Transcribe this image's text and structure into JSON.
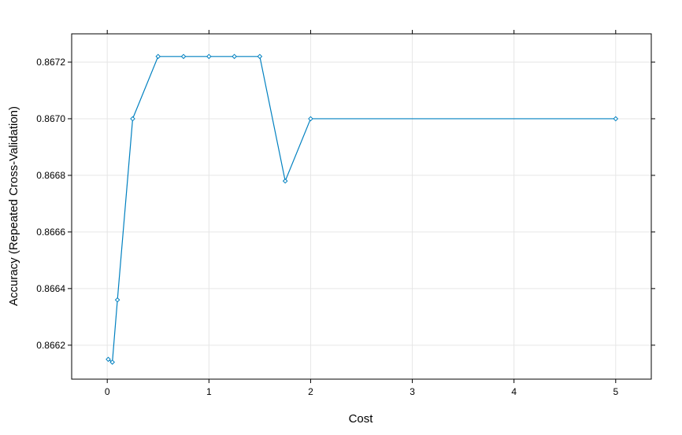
{
  "chart_data": {
    "type": "line",
    "title": "",
    "xlabel": "Cost",
    "ylabel": "Accuracy (Repeated Cross-Validation)",
    "xlim": [
      -0.35,
      5.35
    ],
    "ylim": [
      0.86608,
      0.8673
    ],
    "x_ticks": [
      0,
      1,
      2,
      3,
      4,
      5
    ],
    "x_tick_labels": [
      "0",
      "1",
      "2",
      "3",
      "4",
      "5"
    ],
    "y_ticks": [
      0.8662,
      0.8664,
      0.8666,
      0.8668,
      0.867,
      0.8672
    ],
    "y_tick_labels": [
      "0.8662",
      "0.8664",
      "0.8666",
      "0.8668",
      "0.8670",
      "0.8672"
    ],
    "grid": true,
    "series": [
      {
        "color": "#0080c0",
        "marker": "diamond",
        "x": [
          0.01,
          0.05,
          0.1,
          0.25,
          0.5,
          0.75,
          1.0,
          1.25,
          1.5,
          1.75,
          2.0,
          5.0
        ],
        "y": [
          0.86615,
          0.86614,
          0.86636,
          0.867,
          0.86722,
          0.86722,
          0.86722,
          0.86722,
          0.86722,
          0.86678,
          0.867,
          0.867
        ]
      }
    ]
  }
}
